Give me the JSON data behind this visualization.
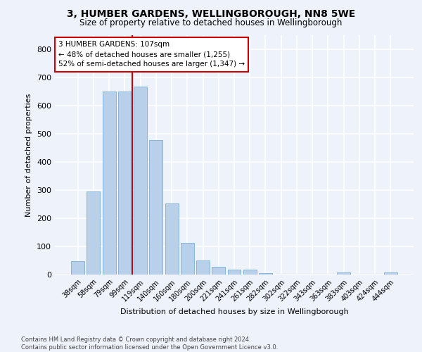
{
  "title1": "3, HUMBER GARDENS, WELLINGBOROUGH, NN8 5WE",
  "title2": "Size of property relative to detached houses in Wellingborough",
  "xlabel": "Distribution of detached houses by size in Wellingborough",
  "ylabel": "Number of detached properties",
  "categories": [
    "38sqm",
    "58sqm",
    "79sqm",
    "99sqm",
    "119sqm",
    "140sqm",
    "160sqm",
    "180sqm",
    "200sqm",
    "221sqm",
    "241sqm",
    "261sqm",
    "282sqm",
    "302sqm",
    "322sqm",
    "343sqm",
    "363sqm",
    "383sqm",
    "403sqm",
    "424sqm",
    "444sqm"
  ],
  "values": [
    47,
    295,
    651,
    651,
    667,
    478,
    252,
    112,
    50,
    27,
    17,
    17,
    4,
    1,
    1,
    1,
    1,
    8,
    1,
    1,
    8
  ],
  "bar_color": "#b8d0ea",
  "bar_edge_color": "#7aaed4",
  "vline_x_index": 3.5,
  "vline_color": "#cc0000",
  "annotation_text": "3 HUMBER GARDENS: 107sqm\n← 48% of detached houses are smaller (1,255)\n52% of semi-detached houses are larger (1,347) →",
  "annotation_box_color": "#ffffff",
  "annotation_box_edgecolor": "#cc0000",
  "ylim": [
    0,
    850
  ],
  "yticks": [
    0,
    100,
    200,
    300,
    400,
    500,
    600,
    700,
    800
  ],
  "background_color": "#eef2fb",
  "grid_color": "#ffffff",
  "footer_text": "Contains HM Land Registry data © Crown copyright and database right 2024.\nContains public sector information licensed under the Open Government Licence v3.0."
}
